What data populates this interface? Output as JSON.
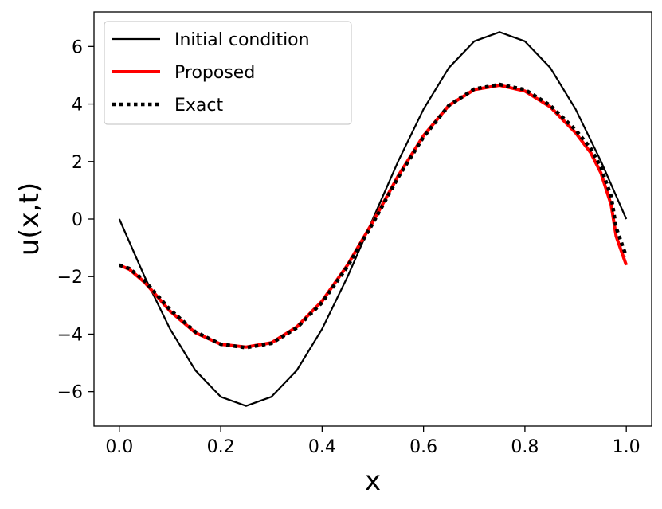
{
  "chart_data": {
    "type": "line",
    "title": "",
    "xlabel": "x",
    "ylabel": "u(x,t)",
    "xlim": [
      -0.05,
      1.05
    ],
    "ylim": [
      -7.2,
      7.2
    ],
    "xticks": [
      0.0,
      0.2,
      0.4,
      0.6,
      0.8,
      1.0
    ],
    "xtick_labels": [
      "0.0",
      "0.2",
      "0.4",
      "0.6",
      "0.8",
      "1.0"
    ],
    "yticks": [
      -6,
      -4,
      -2,
      0,
      2,
      4,
      6
    ],
    "ytick_labels": [
      "−6",
      "−4",
      "−2",
      "0",
      "2",
      "4",
      "6"
    ],
    "grid": false,
    "legend_position": "top-left",
    "series": [
      {
        "name": "Initial condition",
        "color": "#000000",
        "style": "solid",
        "x": [
          0.0,
          0.05,
          0.1,
          0.15,
          0.2,
          0.25,
          0.3,
          0.35,
          0.4,
          0.45,
          0.5,
          0.55,
          0.6,
          0.65,
          0.7,
          0.75,
          0.8,
          0.85,
          0.9,
          0.95,
          1.0
        ],
        "y": [
          0.0,
          -2.01,
          -3.82,
          -5.26,
          -6.18,
          -6.5,
          -6.18,
          -5.26,
          -3.82,
          -2.01,
          0.0,
          2.01,
          3.82,
          5.26,
          6.18,
          6.5,
          6.18,
          5.26,
          3.82,
          2.01,
          0.0
        ]
      },
      {
        "name": "Proposed",
        "color": "#ff0000",
        "style": "solid",
        "x": [
          0.0,
          0.02,
          0.05,
          0.08,
          0.1,
          0.15,
          0.2,
          0.25,
          0.3,
          0.35,
          0.4,
          0.45,
          0.5,
          0.55,
          0.6,
          0.65,
          0.7,
          0.75,
          0.8,
          0.85,
          0.9,
          0.93,
          0.95,
          0.97,
          0.98,
          1.0
        ],
        "y": [
          -1.6,
          -1.75,
          -2.2,
          -2.8,
          -3.2,
          -3.95,
          -4.35,
          -4.45,
          -4.3,
          -3.75,
          -2.85,
          -1.6,
          -0.1,
          1.5,
          2.9,
          3.95,
          4.5,
          4.65,
          4.45,
          3.9,
          3.0,
          2.3,
          1.6,
          0.5,
          -0.6,
          -1.6
        ]
      },
      {
        "name": "Exact",
        "color": "#000000",
        "style": "dotted",
        "x": [
          0.0,
          0.02,
          0.05,
          0.08,
          0.1,
          0.15,
          0.2,
          0.25,
          0.3,
          0.35,
          0.4,
          0.45,
          0.5,
          0.55,
          0.6,
          0.65,
          0.7,
          0.75,
          0.8,
          0.85,
          0.9,
          0.93,
          0.95,
          0.97,
          0.98,
          1.0
        ],
        "y": [
          -1.6,
          -1.72,
          -2.15,
          -2.75,
          -3.15,
          -3.92,
          -4.35,
          -4.47,
          -4.32,
          -3.78,
          -2.9,
          -1.65,
          -0.15,
          1.45,
          2.85,
          3.95,
          4.52,
          4.68,
          4.5,
          3.95,
          3.1,
          2.45,
          1.8,
          0.8,
          -0.3,
          -1.3
        ]
      }
    ]
  }
}
